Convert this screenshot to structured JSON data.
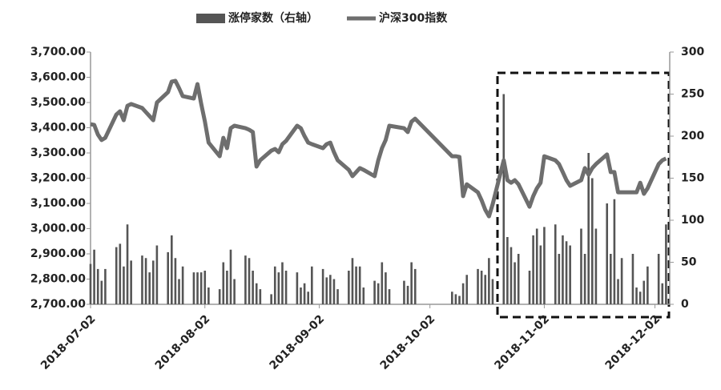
{
  "chart_data": {
    "type": "combo",
    "legend": "top",
    "x": [
      "2018-07-02",
      "2018-07-03",
      "2018-07-04",
      "2018-07-05",
      "2018-07-06",
      "2018-07-09",
      "2018-07-10",
      "2018-07-11",
      "2018-07-12",
      "2018-07-13",
      "2018-07-16",
      "2018-07-17",
      "2018-07-18",
      "2018-07-19",
      "2018-07-20",
      "2018-07-23",
      "2018-07-24",
      "2018-07-25",
      "2018-07-26",
      "2018-07-27",
      "2018-07-30",
      "2018-07-31",
      "2018-08-01",
      "2018-08-02",
      "2018-08-03",
      "2018-08-06",
      "2018-08-07",
      "2018-08-08",
      "2018-08-09",
      "2018-08-10",
      "2018-08-13",
      "2018-08-14",
      "2018-08-15",
      "2018-08-16",
      "2018-08-17",
      "2018-08-20",
      "2018-08-21",
      "2018-08-22",
      "2018-08-23",
      "2018-08-24",
      "2018-08-27",
      "2018-08-28",
      "2018-08-29",
      "2018-08-30",
      "2018-08-31",
      "2018-09-03",
      "2018-09-04",
      "2018-09-05",
      "2018-09-06",
      "2018-09-07",
      "2018-09-10",
      "2018-09-11",
      "2018-09-12",
      "2018-09-13",
      "2018-09-14",
      "2018-09-17",
      "2018-09-18",
      "2018-09-19",
      "2018-09-20",
      "2018-09-21",
      "2018-09-25",
      "2018-09-26",
      "2018-09-27",
      "2018-09-28",
      "2018-10-08",
      "2018-10-09",
      "2018-10-10",
      "2018-10-11",
      "2018-10-12",
      "2018-10-15",
      "2018-10-16",
      "2018-10-17",
      "2018-10-18",
      "2018-10-19",
      "2018-10-22",
      "2018-10-23",
      "2018-10-24",
      "2018-10-25",
      "2018-10-26",
      "2018-10-29",
      "2018-10-30",
      "2018-10-31",
      "2018-11-01",
      "2018-11-02",
      "2018-11-05",
      "2018-11-06",
      "2018-11-07",
      "2018-11-08",
      "2018-11-09",
      "2018-11-12",
      "2018-11-13",
      "2018-11-14",
      "2018-11-15",
      "2018-11-16",
      "2018-11-19",
      "2018-11-20",
      "2018-11-21",
      "2018-11-22",
      "2018-11-23",
      "2018-11-26",
      "2018-11-27",
      "2018-11-28",
      "2018-11-29",
      "2018-11-30",
      "2018-12-03",
      "2018-12-04",
      "2018-12-05"
    ],
    "series": [
      {
        "name": "涨停家数（右轴）",
        "type": "bar",
        "axis": "y2",
        "color": "#555555",
        "values": [
          48,
          65,
          42,
          28,
          42,
          68,
          72,
          45,
          95,
          52,
          58,
          55,
          38,
          52,
          70,
          62,
          82,
          55,
          30,
          45,
          38,
          38,
          38,
          40,
          20,
          18,
          50,
          40,
          65,
          30,
          58,
          55,
          40,
          25,
          18,
          12,
          45,
          38,
          50,
          40,
          38,
          20,
          25,
          15,
          45,
          42,
          32,
          35,
          30,
          18,
          40,
          55,
          45,
          45,
          20,
          28,
          25,
          50,
          38,
          18,
          28,
          22,
          50,
          42,
          15,
          12,
          10,
          25,
          35,
          42,
          40,
          35,
          55,
          30,
          250,
          80,
          68,
          50,
          60,
          40,
          82,
          90,
          70,
          92,
          95,
          60,
          82,
          75,
          70,
          90,
          60,
          180,
          150,
          90,
          120,
          60,
          125,
          30,
          55,
          60,
          20,
          15,
          28,
          45,
          60,
          25,
          95
        ]
      },
      {
        "name": "沪深300指数",
        "type": "line",
        "color": "#6e6e6e",
        "values": [
          3414,
          3411,
          3373,
          3351,
          3360,
          3452,
          3465,
          3430,
          3487,
          3494,
          3478,
          3462,
          3446,
          3430,
          3500,
          3541,
          3583,
          3586,
          3557,
          3525,
          3516,
          3573,
          3494,
          3424,
          3341,
          3287,
          3360,
          3319,
          3398,
          3408,
          3398,
          3392,
          3383,
          3246,
          3271,
          3309,
          3316,
          3303,
          3335,
          3348,
          3408,
          3398,
          3367,
          3341,
          3335,
          3319,
          3335,
          3341,
          3303,
          3271,
          3233,
          3208,
          3224,
          3240,
          3233,
          3208,
          3271,
          3319,
          3351,
          3408,
          3398,
          3383,
          3424,
          3436,
          3287,
          3287,
          3284,
          3129,
          3176,
          3144,
          3113,
          3075,
          3049,
          3097,
          3271,
          3192,
          3182,
          3192,
          3176,
          3087,
          3129,
          3160,
          3182,
          3287,
          3271,
          3256,
          3224,
          3192,
          3170,
          3192,
          3240,
          3214,
          3240,
          3256,
          3294,
          3224,
          3224,
          3144,
          3144,
          3144,
          3144,
          3182,
          3138,
          3160,
          3256,
          3271,
          3278
        ]
      }
    ],
    "xlim": [
      "2018-07-02",
      "2018-12-06"
    ],
    "xticks": [
      "2018-07-02",
      "2018-08-02",
      "2018-09-02",
      "2018-10-02",
      "2018-11-02",
      "2018-12-02"
    ],
    "ylim": [
      2700,
      3700
    ],
    "yticks": [
      {
        "value": 2700,
        "label": "2,700.00"
      },
      {
        "value": 2800,
        "label": "2,800.00"
      },
      {
        "value": 2900,
        "label": "2,900.00"
      },
      {
        "value": 3000,
        "label": "3,000.00"
      },
      {
        "value": 3100,
        "label": "3,100.00"
      },
      {
        "value": 3200,
        "label": "3,200.00"
      },
      {
        "value": 3300,
        "label": "3,300.00"
      },
      {
        "value": 3400,
        "label": "3,400.00"
      },
      {
        "value": 3500,
        "label": "3,500.00"
      },
      {
        "value": 3600,
        "label": "3,600.00"
      },
      {
        "value": 3700,
        "label": "3,700.00"
      }
    ],
    "y2lim": [
      0,
      300
    ],
    "y2ticks": [
      0,
      50,
      100,
      150,
      200,
      250,
      300
    ]
  }
}
